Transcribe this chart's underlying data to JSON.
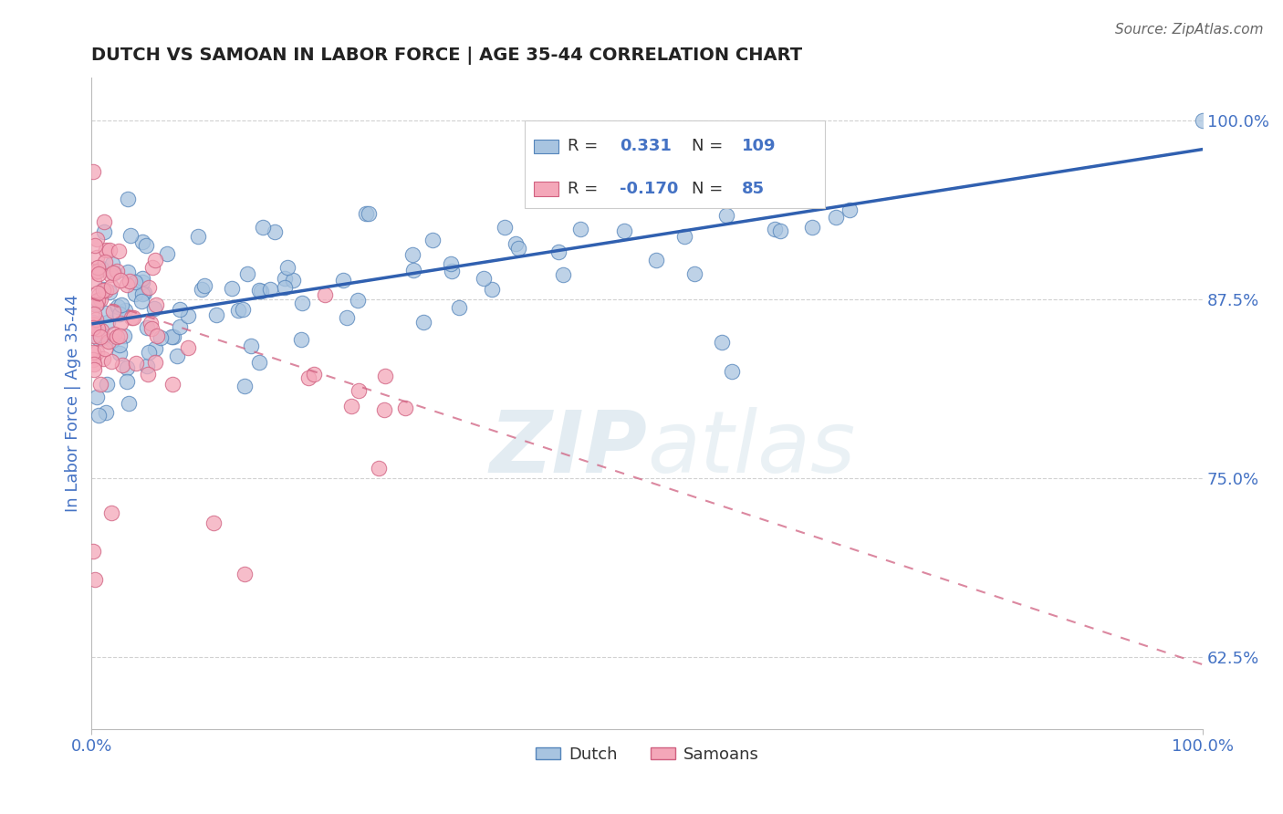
{
  "title": "DUTCH VS SAMOAN IN LABOR FORCE | AGE 35-44 CORRELATION CHART",
  "source_text": "Source: ZipAtlas.com",
  "ylabel": "In Labor Force | Age 35-44",
  "watermark_zip": "ZIP",
  "watermark_atlas": "atlas",
  "xlim": [
    0.0,
    1.0
  ],
  "ylim": [
    0.575,
    1.03
  ],
  "yticks": [
    0.625,
    0.75,
    0.875,
    1.0
  ],
  "ytick_labels": [
    "62.5%",
    "75.0%",
    "87.5%",
    "100.0%"
  ],
  "xtick_labels": [
    "0.0%",
    "100.0%"
  ],
  "dutch_color": "#a8c4e0",
  "dutch_edge_color": "#5585bb",
  "dutch_line_color": "#3060b0",
  "samoan_color": "#f4a7b9",
  "samoan_edge_color": "#d06080",
  "samoan_line_color": "#d06080",
  "dutch_R": 0.331,
  "dutch_N": 109,
  "samoan_R": -0.17,
  "samoan_N": 85,
  "legend_dutch_label": "Dutch",
  "legend_samoan_label": "Samoans",
  "title_color": "#222222",
  "stat_color": "#4472c4",
  "tick_label_color": "#4472c4",
  "background_color": "#ffffff",
  "grid_color": "#cccccc",
  "dutch_line_y0": 0.858,
  "dutch_line_y1": 0.98,
  "samoan_line_y0": 0.876,
  "samoan_line_y1": 0.62
}
